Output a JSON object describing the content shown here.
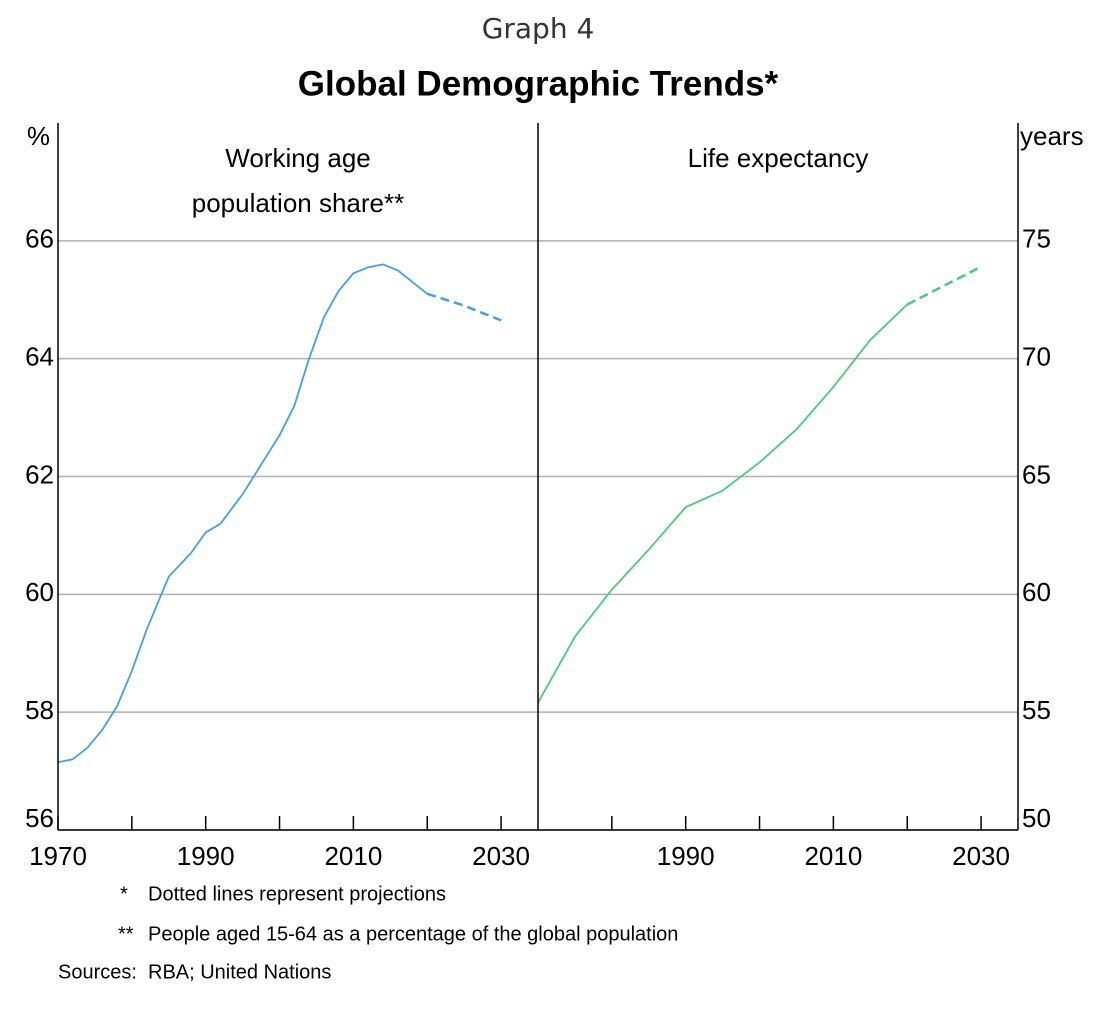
{
  "figure": {
    "label": "Graph 4",
    "title": "Global Demographic Trends*",
    "notes": [
      {
        "mark": "*",
        "text": "Dotted lines represent projections"
      },
      {
        "mark": "**",
        "text": "People aged 15-64 as a percentage of the global population"
      }
    ],
    "sources_label": "Sources:",
    "sources": "RBA; United Nations"
  },
  "chart_data": [
    {
      "type": "line",
      "title_lines": [
        "Working age",
        "population share**"
      ],
      "ylabel": "%",
      "yaxis_side": "left",
      "xlim": [
        1970,
        2035
      ],
      "xticks": [
        1970,
        1990,
        2010,
        2030
      ],
      "xminorticks": [
        1980,
        2000,
        2020
      ],
      "ylim": [
        56,
        68
      ],
      "yticks": [
        56,
        58,
        60,
        62,
        64,
        66
      ],
      "grid": true,
      "series": [
        {
          "color": "#4a9ee0",
          "style": "solid",
          "x": [
            1970,
            1972,
            1974,
            1976,
            1978,
            1980,
            1982,
            1985,
            1988,
            1990,
            1992,
            1995,
            1998,
            2000,
            2002,
            2004,
            2006,
            2008,
            2010,
            2012,
            2014,
            2016,
            2018,
            2020
          ],
          "values": [
            57.15,
            57.2,
            57.4,
            57.7,
            58.1,
            58.7,
            59.4,
            60.3,
            60.7,
            61.05,
            61.2,
            61.7,
            62.3,
            62.7,
            63.2,
            64.0,
            64.7,
            65.15,
            65.45,
            65.55,
            65.6,
            65.5,
            65.3,
            65.1
          ]
        },
        {
          "color": "#4a9ee0",
          "style": "dashed",
          "x": [
            2020,
            2025,
            2030
          ],
          "values": [
            65.1,
            64.9,
            64.65
          ]
        }
      ]
    },
    {
      "type": "line",
      "title_lines": [
        "Life expectancy"
      ],
      "ylabel": "years",
      "yaxis_side": "right",
      "xlim": [
        1970,
        2035
      ],
      "xticks": [
        1990,
        2010,
        2030
      ],
      "xminorticks": [
        1980,
        2000,
        2020
      ],
      "ylim": [
        50,
        80
      ],
      "yticks": [
        50,
        55,
        60,
        65,
        70,
        75
      ],
      "grid": true,
      "series": [
        {
          "color": "#4ec97a",
          "style": "solid",
          "x": [
            1970,
            1975,
            1980,
            1985,
            1990,
            1995,
            2000,
            2005,
            2010,
            2015,
            2020
          ],
          "values": [
            55.4,
            58.2,
            60.2,
            61.9,
            63.7,
            64.4,
            65.6,
            67.0,
            68.8,
            70.8,
            72.3
          ]
        },
        {
          "color": "#4ec97a",
          "style": "dashed",
          "x": [
            2020,
            2025,
            2030
          ],
          "values": [
            72.3,
            73.1,
            73.9
          ]
        }
      ]
    }
  ]
}
